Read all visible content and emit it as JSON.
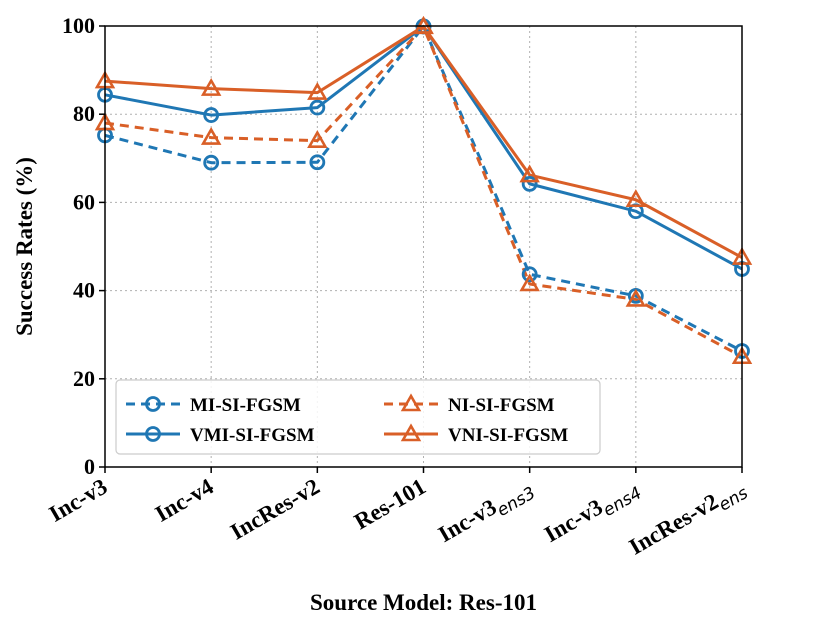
{
  "chart_data": {
    "type": "line",
    "title": "",
    "xlabel": "Source Model: Res-101",
    "ylabel": "Success Rates (%)",
    "ylim": [
      0,
      100
    ],
    "yticks": [
      "0",
      "20",
      "40",
      "60",
      "80",
      "100"
    ],
    "grid": true,
    "legend_position": "lower-left",
    "categories": [
      {
        "main": "Inc-v3",
        "sub": ""
      },
      {
        "main": "Inc-v4",
        "sub": ""
      },
      {
        "main": "IncRes-v2",
        "sub": ""
      },
      {
        "main": "Res-101",
        "sub": ""
      },
      {
        "main": "Inc-v3",
        "sub": "ens3"
      },
      {
        "main": "Inc-v3",
        "sub": "ens4"
      },
      {
        "main": "IncRes-v2",
        "sub": "ens"
      }
    ],
    "series": [
      {
        "name": "MI-SI-FGSM",
        "values": [
          75.2,
          69.0,
          69.1,
          99.9,
          43.7,
          38.8,
          26.3
        ],
        "color": "#1f77b4",
        "dash": true,
        "marker": "circle"
      },
      {
        "name": "VMI-SI-FGSM",
        "values": [
          84.4,
          79.8,
          81.5,
          99.9,
          64.2,
          58.0,
          44.9
        ],
        "color": "#1f77b4",
        "dash": false,
        "marker": "circle"
      },
      {
        "name": "NI-SI-FGSM",
        "values": [
          78.0,
          74.7,
          74.0,
          99.8,
          41.5,
          38.0,
          25.0
        ],
        "color": "#d95f27",
        "dash": true,
        "marker": "triangle"
      },
      {
        "name": "VNI-SI-FGSM",
        "values": [
          87.5,
          85.8,
          84.9,
          99.9,
          66.2,
          60.6,
          47.5
        ],
        "color": "#d95f27",
        "dash": false,
        "marker": "triangle"
      }
    ]
  }
}
